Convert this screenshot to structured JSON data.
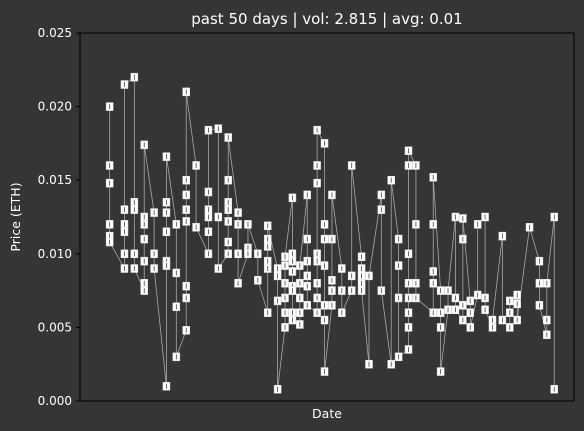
{
  "chart_data": {
    "type": "scatter",
    "title": "past 50 days | vol: 2.815 | avg: 0.01",
    "xlabel": "Date",
    "ylabel": "Price (ETH)",
    "ylim": [
      0,
      0.025
    ],
    "yticks": [
      "0.000",
      "0.005",
      "0.010",
      "0.015",
      "0.020",
      "0.025"
    ],
    "grid": false,
    "legend": "none",
    "colors": {
      "background": "#353535",
      "marker": "#ffffff",
      "line": "#a8a8a8",
      "text": "#ffffff"
    },
    "points": [
      {
        "x": 0.06,
        "y": 0.02
      },
      {
        "x": 0.06,
        "y": 0.016
      },
      {
        "x": 0.06,
        "y": 0.0148
      },
      {
        "x": 0.06,
        "y": 0.012
      },
      {
        "x": 0.06,
        "y": 0.0112
      },
      {
        "x": 0.06,
        "y": 0.0108
      },
      {
        "x": 0.09,
        "y": 0.0215
      },
      {
        "x": 0.09,
        "y": 0.013
      },
      {
        "x": 0.09,
        "y": 0.012
      },
      {
        "x": 0.09,
        "y": 0.0115
      },
      {
        "x": 0.09,
        "y": 0.01
      },
      {
        "x": 0.09,
        "y": 0.009
      },
      {
        "x": 0.11,
        "y": 0.022
      },
      {
        "x": 0.11,
        "y": 0.0135
      },
      {
        "x": 0.11,
        "y": 0.013
      },
      {
        "x": 0.11,
        "y": 0.01
      },
      {
        "x": 0.11,
        "y": 0.009
      },
      {
        "x": 0.13,
        "y": 0.0174
      },
      {
        "x": 0.13,
        "y": 0.0125
      },
      {
        "x": 0.13,
        "y": 0.012
      },
      {
        "x": 0.13,
        "y": 0.011
      },
      {
        "x": 0.13,
        "y": 0.0095
      },
      {
        "x": 0.13,
        "y": 0.008
      },
      {
        "x": 0.13,
        "y": 0.0075
      },
      {
        "x": 0.15,
        "y": 0.0128
      },
      {
        "x": 0.15,
        "y": 0.01
      },
      {
        "x": 0.15,
        "y": 0.009
      },
      {
        "x": 0.175,
        "y": 0.0166
      },
      {
        "x": 0.175,
        "y": 0.0135
      },
      {
        "x": 0.175,
        "y": 0.0128
      },
      {
        "x": 0.175,
        "y": 0.0115
      },
      {
        "x": 0.175,
        "y": 0.0095
      },
      {
        "x": 0.175,
        "y": 0.0092
      },
      {
        "x": 0.175,
        "y": 0.001
      },
      {
        "x": 0.195,
        "y": 0.012
      },
      {
        "x": 0.195,
        "y": 0.0087
      },
      {
        "x": 0.195,
        "y": 0.0064
      },
      {
        "x": 0.195,
        "y": 0.003
      },
      {
        "x": 0.215,
        "y": 0.021
      },
      {
        "x": 0.215,
        "y": 0.015
      },
      {
        "x": 0.215,
        "y": 0.014
      },
      {
        "x": 0.215,
        "y": 0.013
      },
      {
        "x": 0.215,
        "y": 0.0122
      },
      {
        "x": 0.215,
        "y": 0.0078
      },
      {
        "x": 0.215,
        "y": 0.007
      },
      {
        "x": 0.215,
        "y": 0.0048
      },
      {
        "x": 0.235,
        "y": 0.016
      },
      {
        "x": 0.235,
        "y": 0.0118
      },
      {
        "x": 0.26,
        "y": 0.0184
      },
      {
        "x": 0.26,
        "y": 0.0142
      },
      {
        "x": 0.26,
        "y": 0.013
      },
      {
        "x": 0.26,
        "y": 0.0125
      },
      {
        "x": 0.26,
        "y": 0.0115
      },
      {
        "x": 0.26,
        "y": 0.01
      },
      {
        "x": 0.28,
        "y": 0.0185
      },
      {
        "x": 0.28,
        "y": 0.0125
      },
      {
        "x": 0.28,
        "y": 0.009
      },
      {
        "x": 0.3,
        "y": 0.0179
      },
      {
        "x": 0.3,
        "y": 0.015
      },
      {
        "x": 0.3,
        "y": 0.0135
      },
      {
        "x": 0.3,
        "y": 0.013
      },
      {
        "x": 0.3,
        "y": 0.0122
      },
      {
        "x": 0.3,
        "y": 0.0108
      },
      {
        "x": 0.3,
        "y": 0.01
      },
      {
        "x": 0.32,
        "y": 0.0128
      },
      {
        "x": 0.32,
        "y": 0.012
      },
      {
        "x": 0.32,
        "y": 0.01
      },
      {
        "x": 0.32,
        "y": 0.008
      },
      {
        "x": 0.34,
        "y": 0.012
      },
      {
        "x": 0.34,
        "y": 0.0104
      },
      {
        "x": 0.34,
        "y": 0.01
      },
      {
        "x": 0.36,
        "y": 0.01
      },
      {
        "x": 0.36,
        "y": 0.0082
      },
      {
        "x": 0.38,
        "y": 0.0119
      },
      {
        "x": 0.38,
        "y": 0.011
      },
      {
        "x": 0.38,
        "y": 0.0105
      },
      {
        "x": 0.38,
        "y": 0.0095
      },
      {
        "x": 0.38,
        "y": 0.009
      },
      {
        "x": 0.38,
        "y": 0.006
      },
      {
        "x": 0.4,
        "y": 0.009
      },
      {
        "x": 0.4,
        "y": 0.0085
      },
      {
        "x": 0.4,
        "y": 0.0068
      },
      {
        "x": 0.4,
        "y": 0.0008
      },
      {
        "x": 0.415,
        "y": 0.0098
      },
      {
        "x": 0.415,
        "y": 0.0092
      },
      {
        "x": 0.415,
        "y": 0.008
      },
      {
        "x": 0.415,
        "y": 0.007
      },
      {
        "x": 0.415,
        "y": 0.006
      },
      {
        "x": 0.415,
        "y": 0.005
      },
      {
        "x": 0.43,
        "y": 0.0138
      },
      {
        "x": 0.43,
        "y": 0.01
      },
      {
        "x": 0.43,
        "y": 0.0095
      },
      {
        "x": 0.43,
        "y": 0.0088
      },
      {
        "x": 0.43,
        "y": 0.0078
      },
      {
        "x": 0.43,
        "y": 0.0075
      },
      {
        "x": 0.43,
        "y": 0.006
      },
      {
        "x": 0.43,
        "y": 0.0055
      },
      {
        "x": 0.445,
        "y": 0.0092
      },
      {
        "x": 0.445,
        "y": 0.008
      },
      {
        "x": 0.445,
        "y": 0.007
      },
      {
        "x": 0.445,
        "y": 0.006
      },
      {
        "x": 0.445,
        "y": 0.0052
      },
      {
        "x": 0.46,
        "y": 0.014
      },
      {
        "x": 0.46,
        "y": 0.011
      },
      {
        "x": 0.46,
        "y": 0.0095
      },
      {
        "x": 0.46,
        "y": 0.0085
      },
      {
        "x": 0.46,
        "y": 0.0078
      },
      {
        "x": 0.46,
        "y": 0.0065
      },
      {
        "x": 0.48,
        "y": 0.0184
      },
      {
        "x": 0.48,
        "y": 0.016
      },
      {
        "x": 0.48,
        "y": 0.0148
      },
      {
        "x": 0.48,
        "y": 0.01
      },
      {
        "x": 0.48,
        "y": 0.0095
      },
      {
        "x": 0.48,
        "y": 0.008
      },
      {
        "x": 0.48,
        "y": 0.007
      },
      {
        "x": 0.48,
        "y": 0.006
      },
      {
        "x": 0.495,
        "y": 0.0175
      },
      {
        "x": 0.495,
        "y": 0.012
      },
      {
        "x": 0.495,
        "y": 0.011
      },
      {
        "x": 0.495,
        "y": 0.0092
      },
      {
        "x": 0.495,
        "y": 0.0065
      },
      {
        "x": 0.495,
        "y": 0.0055
      },
      {
        "x": 0.495,
        "y": 0.002
      },
      {
        "x": 0.51,
        "y": 0.014
      },
      {
        "x": 0.51,
        "y": 0.011
      },
      {
        "x": 0.51,
        "y": 0.0082
      },
      {
        "x": 0.51,
        "y": 0.0075
      },
      {
        "x": 0.51,
        "y": 0.0065
      },
      {
        "x": 0.53,
        "y": 0.009
      },
      {
        "x": 0.53,
        "y": 0.0075
      },
      {
        "x": 0.53,
        "y": 0.006
      },
      {
        "x": 0.55,
        "y": 0.016
      },
      {
        "x": 0.55,
        "y": 0.0085
      },
      {
        "x": 0.55,
        "y": 0.0075
      },
      {
        "x": 0.57,
        "y": 0.0098
      },
      {
        "x": 0.57,
        "y": 0.009
      },
      {
        "x": 0.57,
        "y": 0.0085
      },
      {
        "x": 0.57,
        "y": 0.008
      },
      {
        "x": 0.57,
        "y": 0.0075
      },
      {
        "x": 0.585,
        "y": 0.0085
      },
      {
        "x": 0.585,
        "y": 0.0025
      },
      {
        "x": 0.61,
        "y": 0.014
      },
      {
        "x": 0.61,
        "y": 0.013
      },
      {
        "x": 0.61,
        "y": 0.0075
      },
      {
        "x": 0.63,
        "y": 0.015
      },
      {
        "x": 0.63,
        "y": 0.0025
      },
      {
        "x": 0.645,
        "y": 0.011
      },
      {
        "x": 0.645,
        "y": 0.0092
      },
      {
        "x": 0.645,
        "y": 0.007
      },
      {
        "x": 0.645,
        "y": 0.003
      },
      {
        "x": 0.665,
        "y": 0.017
      },
      {
        "x": 0.665,
        "y": 0.016
      },
      {
        "x": 0.665,
        "y": 0.01
      },
      {
        "x": 0.665,
        "y": 0.008
      },
      {
        "x": 0.665,
        "y": 0.007
      },
      {
        "x": 0.665,
        "y": 0.006
      },
      {
        "x": 0.665,
        "y": 0.005
      },
      {
        "x": 0.665,
        "y": 0.0035
      },
      {
        "x": 0.68,
        "y": 0.016
      },
      {
        "x": 0.68,
        "y": 0.012
      },
      {
        "x": 0.68,
        "y": 0.008
      },
      {
        "x": 0.68,
        "y": 0.007
      },
      {
        "x": 0.715,
        "y": 0.0152
      },
      {
        "x": 0.715,
        "y": 0.012
      },
      {
        "x": 0.715,
        "y": 0.0088
      },
      {
        "x": 0.715,
        "y": 0.008
      },
      {
        "x": 0.715,
        "y": 0.006
      },
      {
        "x": 0.73,
        "y": 0.0075
      },
      {
        "x": 0.73,
        "y": 0.006
      },
      {
        "x": 0.73,
        "y": 0.005
      },
      {
        "x": 0.73,
        "y": 0.002
      },
      {
        "x": 0.745,
        "y": 0.0075
      },
      {
        "x": 0.745,
        "y": 0.0062
      },
      {
        "x": 0.76,
        "y": 0.0125
      },
      {
        "x": 0.76,
        "y": 0.007
      },
      {
        "x": 0.76,
        "y": 0.0062
      },
      {
        "x": 0.775,
        "y": 0.0124
      },
      {
        "x": 0.775,
        "y": 0.011
      },
      {
        "x": 0.775,
        "y": 0.0065
      },
      {
        "x": 0.775,
        "y": 0.0055
      },
      {
        "x": 0.79,
        "y": 0.0068
      },
      {
        "x": 0.79,
        "y": 0.006
      },
      {
        "x": 0.79,
        "y": 0.005
      },
      {
        "x": 0.805,
        "y": 0.012
      },
      {
        "x": 0.805,
        "y": 0.0072
      },
      {
        "x": 0.82,
        "y": 0.0125
      },
      {
        "x": 0.82,
        "y": 0.007
      },
      {
        "x": 0.82,
        "y": 0.0062
      },
      {
        "x": 0.835,
        "y": 0.0055
      },
      {
        "x": 0.835,
        "y": 0.005
      },
      {
        "x": 0.855,
        "y": 0.0112
      },
      {
        "x": 0.855,
        "y": 0.0055
      },
      {
        "x": 0.87,
        "y": 0.0068
      },
      {
        "x": 0.87,
        "y": 0.006
      },
      {
        "x": 0.87,
        "y": 0.005
      },
      {
        "x": 0.885,
        "y": 0.0072
      },
      {
        "x": 0.885,
        "y": 0.0066
      },
      {
        "x": 0.885,
        "y": 0.0055
      },
      {
        "x": 0.91,
        "y": 0.0118
      },
      {
        "x": 0.93,
        "y": 0.0095
      },
      {
        "x": 0.93,
        "y": 0.008
      },
      {
        "x": 0.93,
        "y": 0.0065
      },
      {
        "x": 0.945,
        "y": 0.008
      },
      {
        "x": 0.945,
        "y": 0.0055
      },
      {
        "x": 0.945,
        "y": 0.0045
      },
      {
        "x": 0.96,
        "y": 0.0125
      },
      {
        "x": 0.96,
        "y": 0.0008
      }
    ]
  }
}
